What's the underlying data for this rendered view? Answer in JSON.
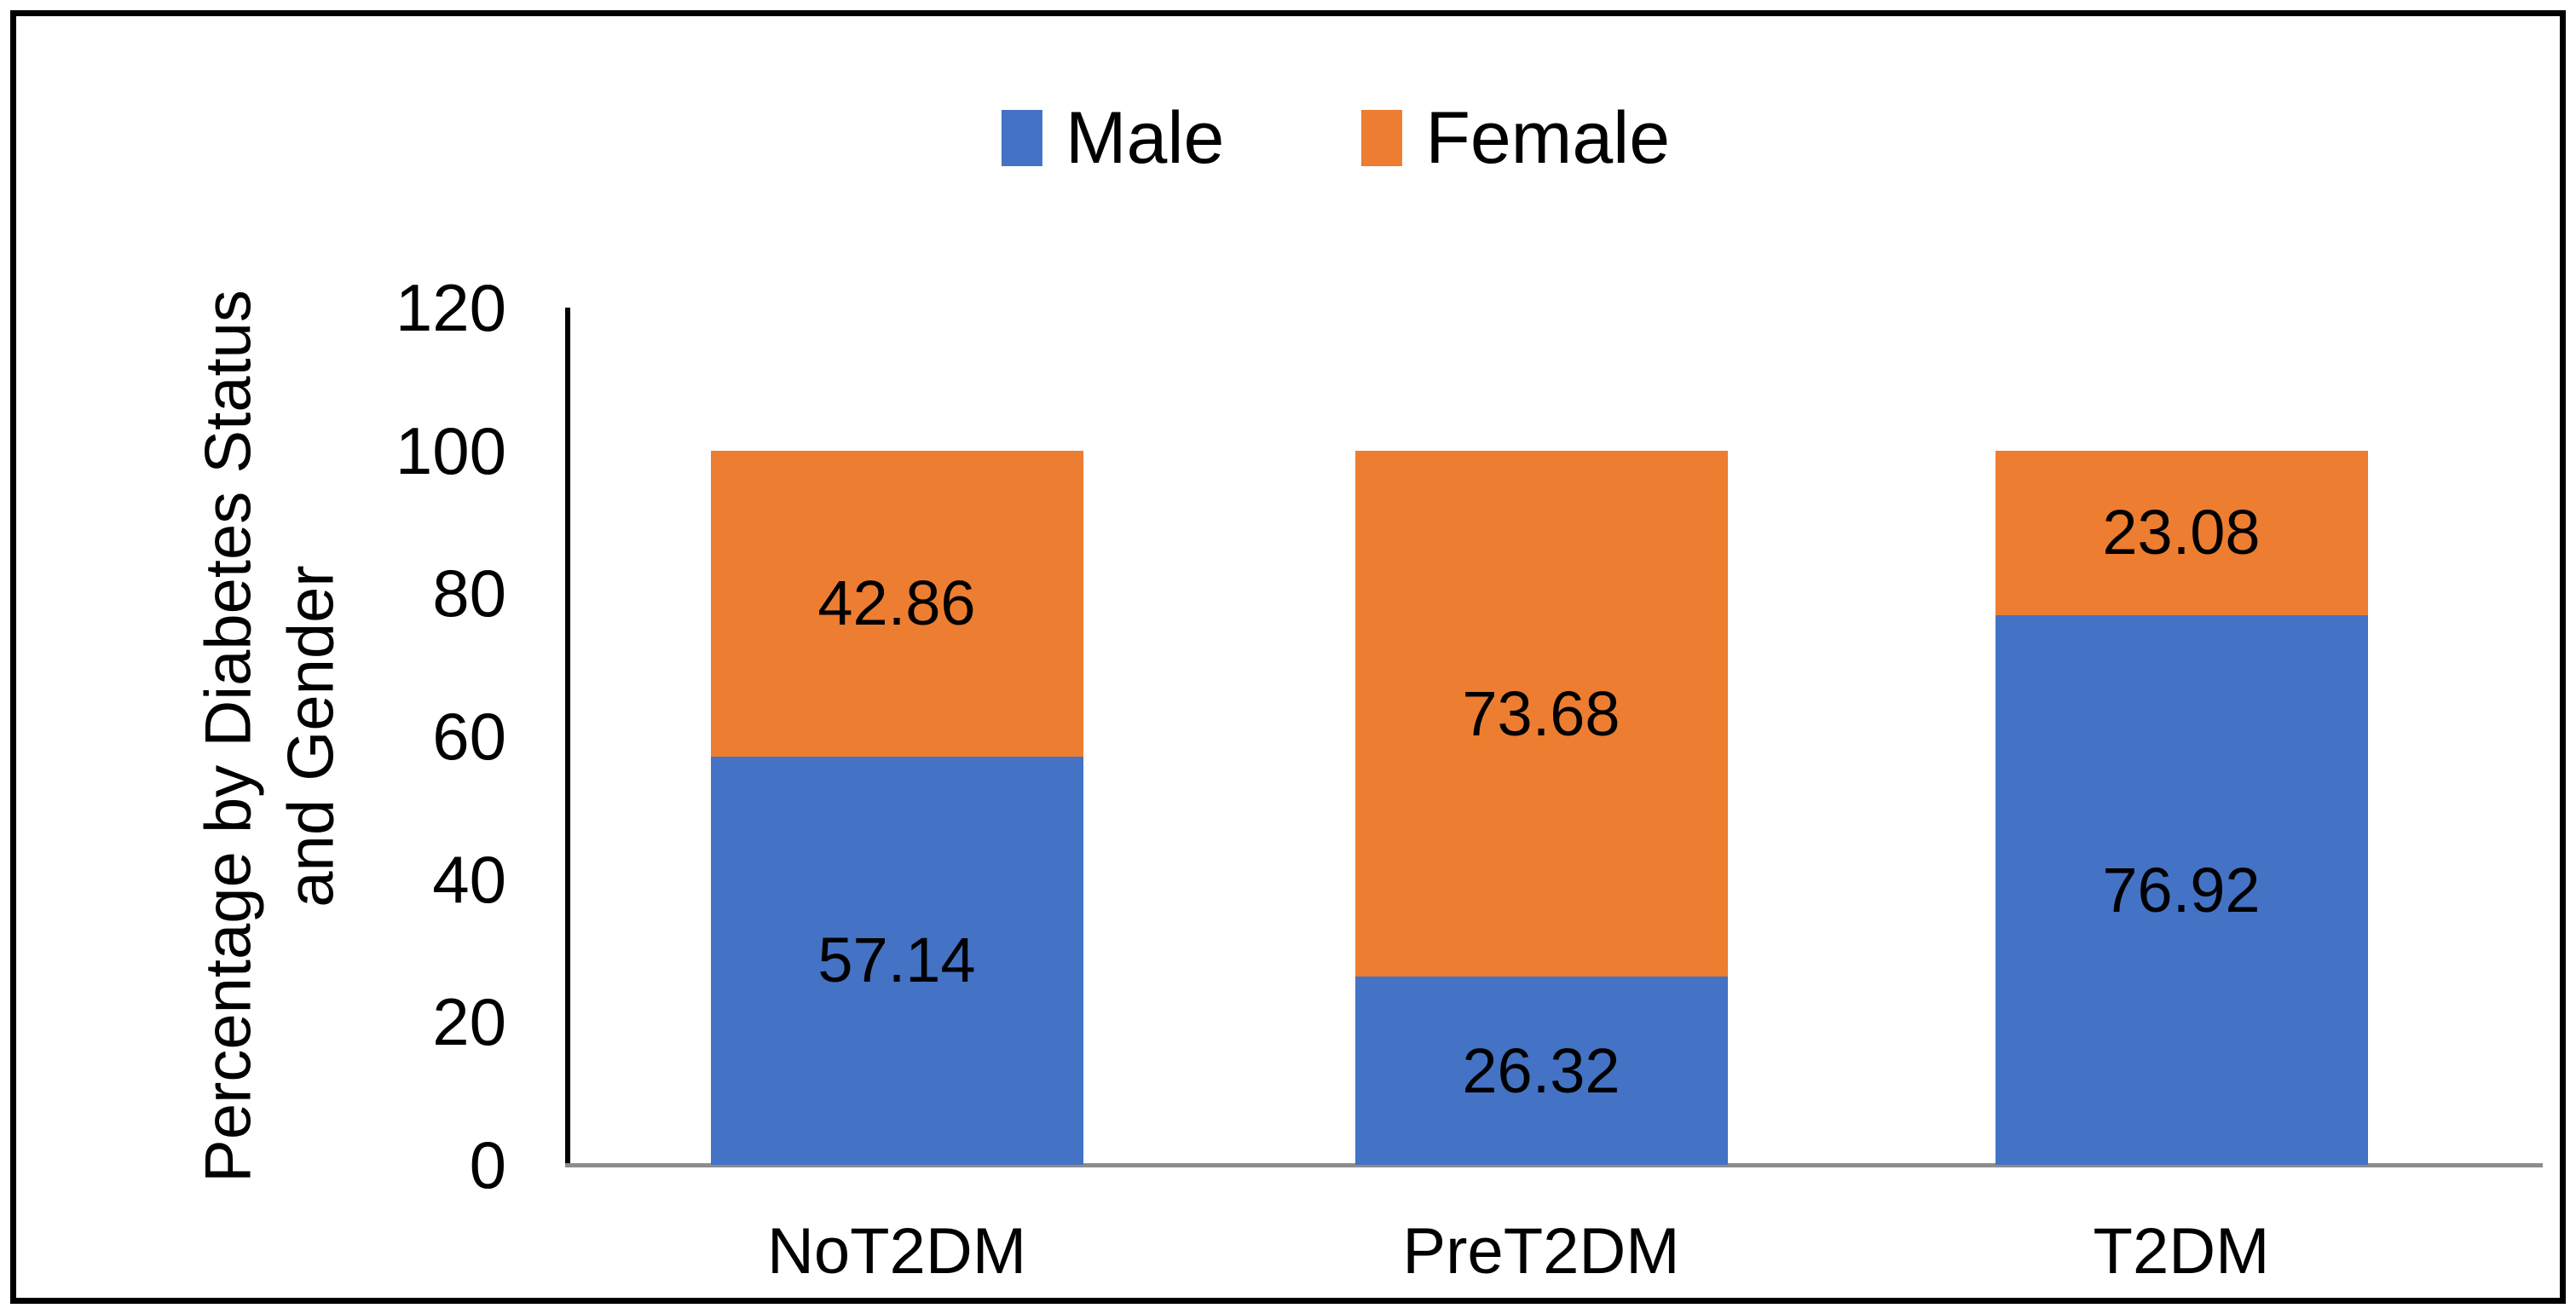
{
  "chart_data": {
    "type": "bar",
    "stacked": true,
    "title": "",
    "categories": [
      "NoT2DM",
      "PreT2DM",
      "T2DM"
    ],
    "series": [
      {
        "name": "Male",
        "color": "#4472C4",
        "values": [
          57.14,
          26.32,
          76.92
        ]
      },
      {
        "name": "Female",
        "color": "#ED7D31",
        "values": [
          42.86,
          73.68,
          23.08
        ]
      }
    ],
    "data_labels": [
      "57.14",
      "26.32",
      "76.92",
      "42.86",
      "73.68",
      "23.08"
    ],
    "xlabel": "",
    "ylabel_line1": "Percentage by Diabetes Status",
    "ylabel_line2": "and Gender",
    "yticks": [
      0,
      20,
      40,
      60,
      80,
      100,
      120
    ],
    "ylim": [
      0,
      120
    ],
    "legend_position": "top-center",
    "grid": false
  },
  "colors": {
    "male": "#4472C4",
    "female": "#ED7D31",
    "axis_line": "#000000",
    "baseline": "#8C8C8C",
    "frame_border": "#000000",
    "text": "#000000"
  }
}
